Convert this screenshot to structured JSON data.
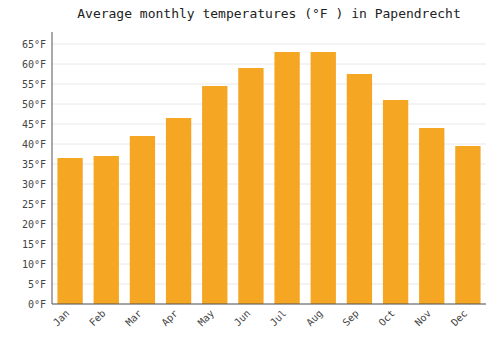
{
  "chart_data": {
    "type": "bar",
    "title": "Average monthly temperatures (°F ) in Papendrecht",
    "categories": [
      "Jan",
      "Feb",
      "Mar",
      "Apr",
      "May",
      "Jun",
      "Jul",
      "Aug",
      "Sep",
      "Oct",
      "Nov",
      "Dec"
    ],
    "values": [
      36.5,
      37.0,
      42.0,
      46.5,
      54.5,
      59.0,
      63.0,
      63.0,
      57.5,
      51.0,
      44.0,
      39.5
    ],
    "color": "#F5A623",
    "ylim": [
      0,
      68
    ],
    "yticks": [
      {
        "value": 0,
        "label": "0°F"
      },
      {
        "value": 5,
        "label": "5°F"
      },
      {
        "value": 10,
        "label": "10°F"
      },
      {
        "value": 15,
        "label": "15°F"
      },
      {
        "value": 20,
        "label": "20°F"
      },
      {
        "value": 25,
        "label": "25°F"
      },
      {
        "value": 30,
        "label": "30°F"
      },
      {
        "value": 35,
        "label": "35°F"
      },
      {
        "value": 40,
        "label": "40°F"
      },
      {
        "value": 45,
        "label": "45°F"
      },
      {
        "value": 50,
        "label": "50°F"
      },
      {
        "value": 55,
        "label": "55°F"
      },
      {
        "value": 60,
        "label": "60°F"
      },
      {
        "value": 65,
        "label": "65°F"
      }
    ],
    "grid": true
  }
}
